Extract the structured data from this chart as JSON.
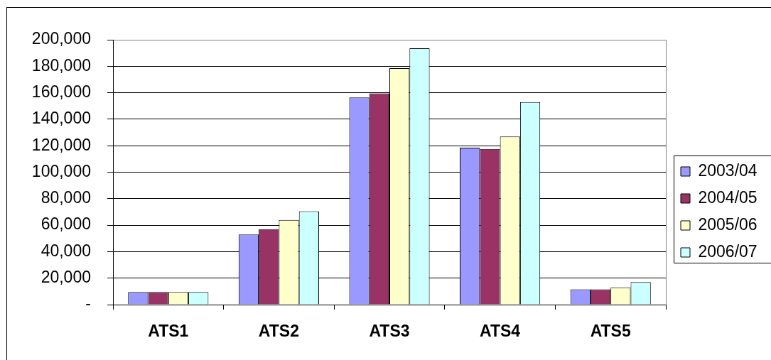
{
  "chart_data": {
    "type": "bar",
    "categories": [
      "ATS1",
      "ATS2",
      "ATS3",
      "ATS4",
      "ATS5"
    ],
    "series": [
      {
        "name": "2003/04",
        "color": "#9999ff",
        "values": [
          9500,
          53000,
          156500,
          118500,
          11500
        ]
      },
      {
        "name": "2004/05",
        "color": "#993366",
        "values": [
          9500,
          57000,
          159500,
          117500,
          11500
        ]
      },
      {
        "name": "2005/06",
        "color": "#ffffcc",
        "values": [
          9500,
          64000,
          178500,
          127000,
          13000
        ]
      },
      {
        "name": "2006/07",
        "color": "#ccffff",
        "values": [
          9500,
          70500,
          193500,
          153000,
          17000
        ]
      }
    ],
    "ylim": [
      0,
      200000
    ],
    "yticks": [
      {
        "value": 0,
        "label": "-"
      },
      {
        "value": 20000,
        "label": "20,000"
      },
      {
        "value": 40000,
        "label": "40,000"
      },
      {
        "value": 60000,
        "label": "60,000"
      },
      {
        "value": 80000,
        "label": "80,000"
      },
      {
        "value": 100000,
        "label": "100,000"
      },
      {
        "value": 120000,
        "label": "120,000"
      },
      {
        "value": 140000,
        "label": "140,000"
      },
      {
        "value": 160000,
        "label": "160,000"
      },
      {
        "value": 180000,
        "label": "180,000"
      },
      {
        "value": 200000,
        "label": "200,000"
      }
    ],
    "grid": "y",
    "legend": "right"
  }
}
